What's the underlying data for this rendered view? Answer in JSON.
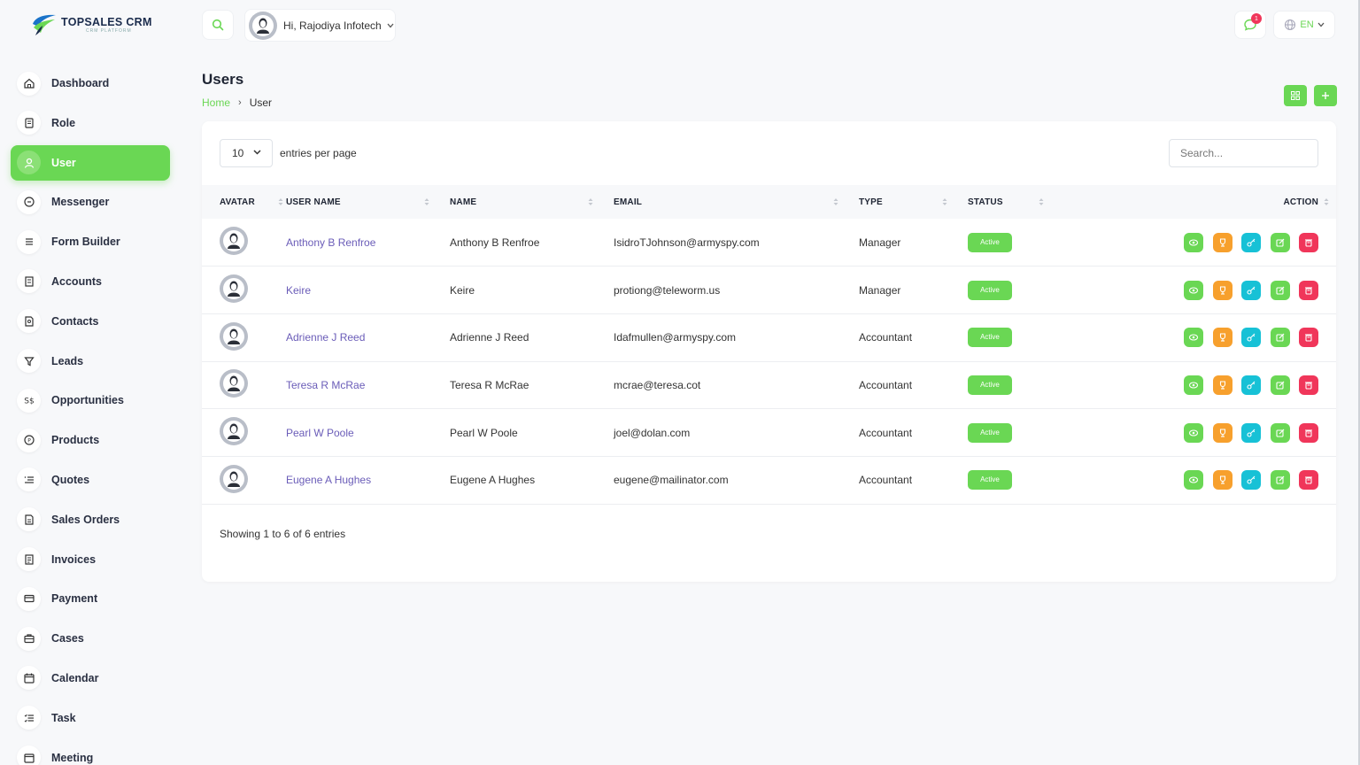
{
  "brand": {
    "title": "TOPSALES CRM",
    "subtitle": "CRM PLATFORM"
  },
  "sidebar": {
    "items": [
      {
        "label": "Dashboard",
        "icon": "home-icon",
        "active": false
      },
      {
        "label": "Role",
        "icon": "role-icon",
        "active": false
      },
      {
        "label": "User",
        "icon": "user-icon",
        "active": true
      },
      {
        "label": "Messenger",
        "icon": "message-icon",
        "active": false
      },
      {
        "label": "Form Builder",
        "icon": "menu-lines-icon",
        "active": false
      },
      {
        "label": "Accounts",
        "icon": "building-icon",
        "active": false
      },
      {
        "label": "Contacts",
        "icon": "contact-file-icon",
        "active": false
      },
      {
        "label": "Leads",
        "icon": "filter-icon",
        "active": false
      },
      {
        "label": "Opportunities",
        "icon": "dollar-icon",
        "active": false
      },
      {
        "label": "Products",
        "icon": "product-circle-icon",
        "active": false
      },
      {
        "label": "Quotes",
        "icon": "quote-list-icon",
        "active": false
      },
      {
        "label": "Sales Orders",
        "icon": "order-file-icon",
        "active": false
      },
      {
        "label": "Invoices",
        "icon": "invoice-icon",
        "active": false
      },
      {
        "label": "Payment",
        "icon": "card-icon",
        "active": false
      },
      {
        "label": "Cases",
        "icon": "briefcase-icon",
        "active": false
      },
      {
        "label": "Calendar",
        "icon": "calendar-icon",
        "active": false
      },
      {
        "label": "Task",
        "icon": "task-list-icon",
        "active": false
      },
      {
        "label": "Meeting",
        "icon": "meeting-icon",
        "active": false
      }
    ]
  },
  "header": {
    "greeting": "Hi, Rajodiya Infotech",
    "notification_count": "1",
    "language": "EN"
  },
  "page": {
    "title": "Users",
    "breadcrumb": {
      "home": "Home",
      "current": "User"
    }
  },
  "table_controls": {
    "per_page_value": "10",
    "per_page_label": "entries per page",
    "search_placeholder": "Search..."
  },
  "table": {
    "columns": [
      "AVATAR",
      "USER NAME",
      "NAME",
      "EMAIL",
      "TYPE",
      "STATUS",
      "ACTION"
    ],
    "rows": [
      {
        "username": "Anthony B Renfroe",
        "name": "Anthony B Renfroe",
        "email": "IsidroTJohnson@armyspy.com",
        "type": "Manager",
        "status": "Active"
      },
      {
        "username": "Keire",
        "name": "Keire",
        "email": "protiong@teleworm.us",
        "type": "Manager",
        "status": "Active"
      },
      {
        "username": "Adrienne J Reed",
        "name": "Adrienne J Reed",
        "email": "Idafmullen@armyspy.com",
        "type": "Accountant",
        "status": "Active"
      },
      {
        "username": "Teresa R McRae",
        "name": "Teresa R McRae",
        "email": "mcrae@teresa.cot",
        "type": "Accountant",
        "status": "Active"
      },
      {
        "username": "Pearl W Poole",
        "name": "Pearl W Poole",
        "email": "joel@dolan.com",
        "type": "Accountant",
        "status": "Active"
      },
      {
        "username": "Eugene A Hughes",
        "name": "Eugene A Hughes",
        "email": "eugene@mailinator.com",
        "type": "Accountant",
        "status": "Active"
      }
    ],
    "footer": "Showing 1 to 6 of 6 entries"
  },
  "colors": {
    "accent": "#6ad754",
    "warning": "#f7a02d",
    "info": "#17c1d6",
    "danger": "#f0365a",
    "link": "#6a5cb8"
  }
}
